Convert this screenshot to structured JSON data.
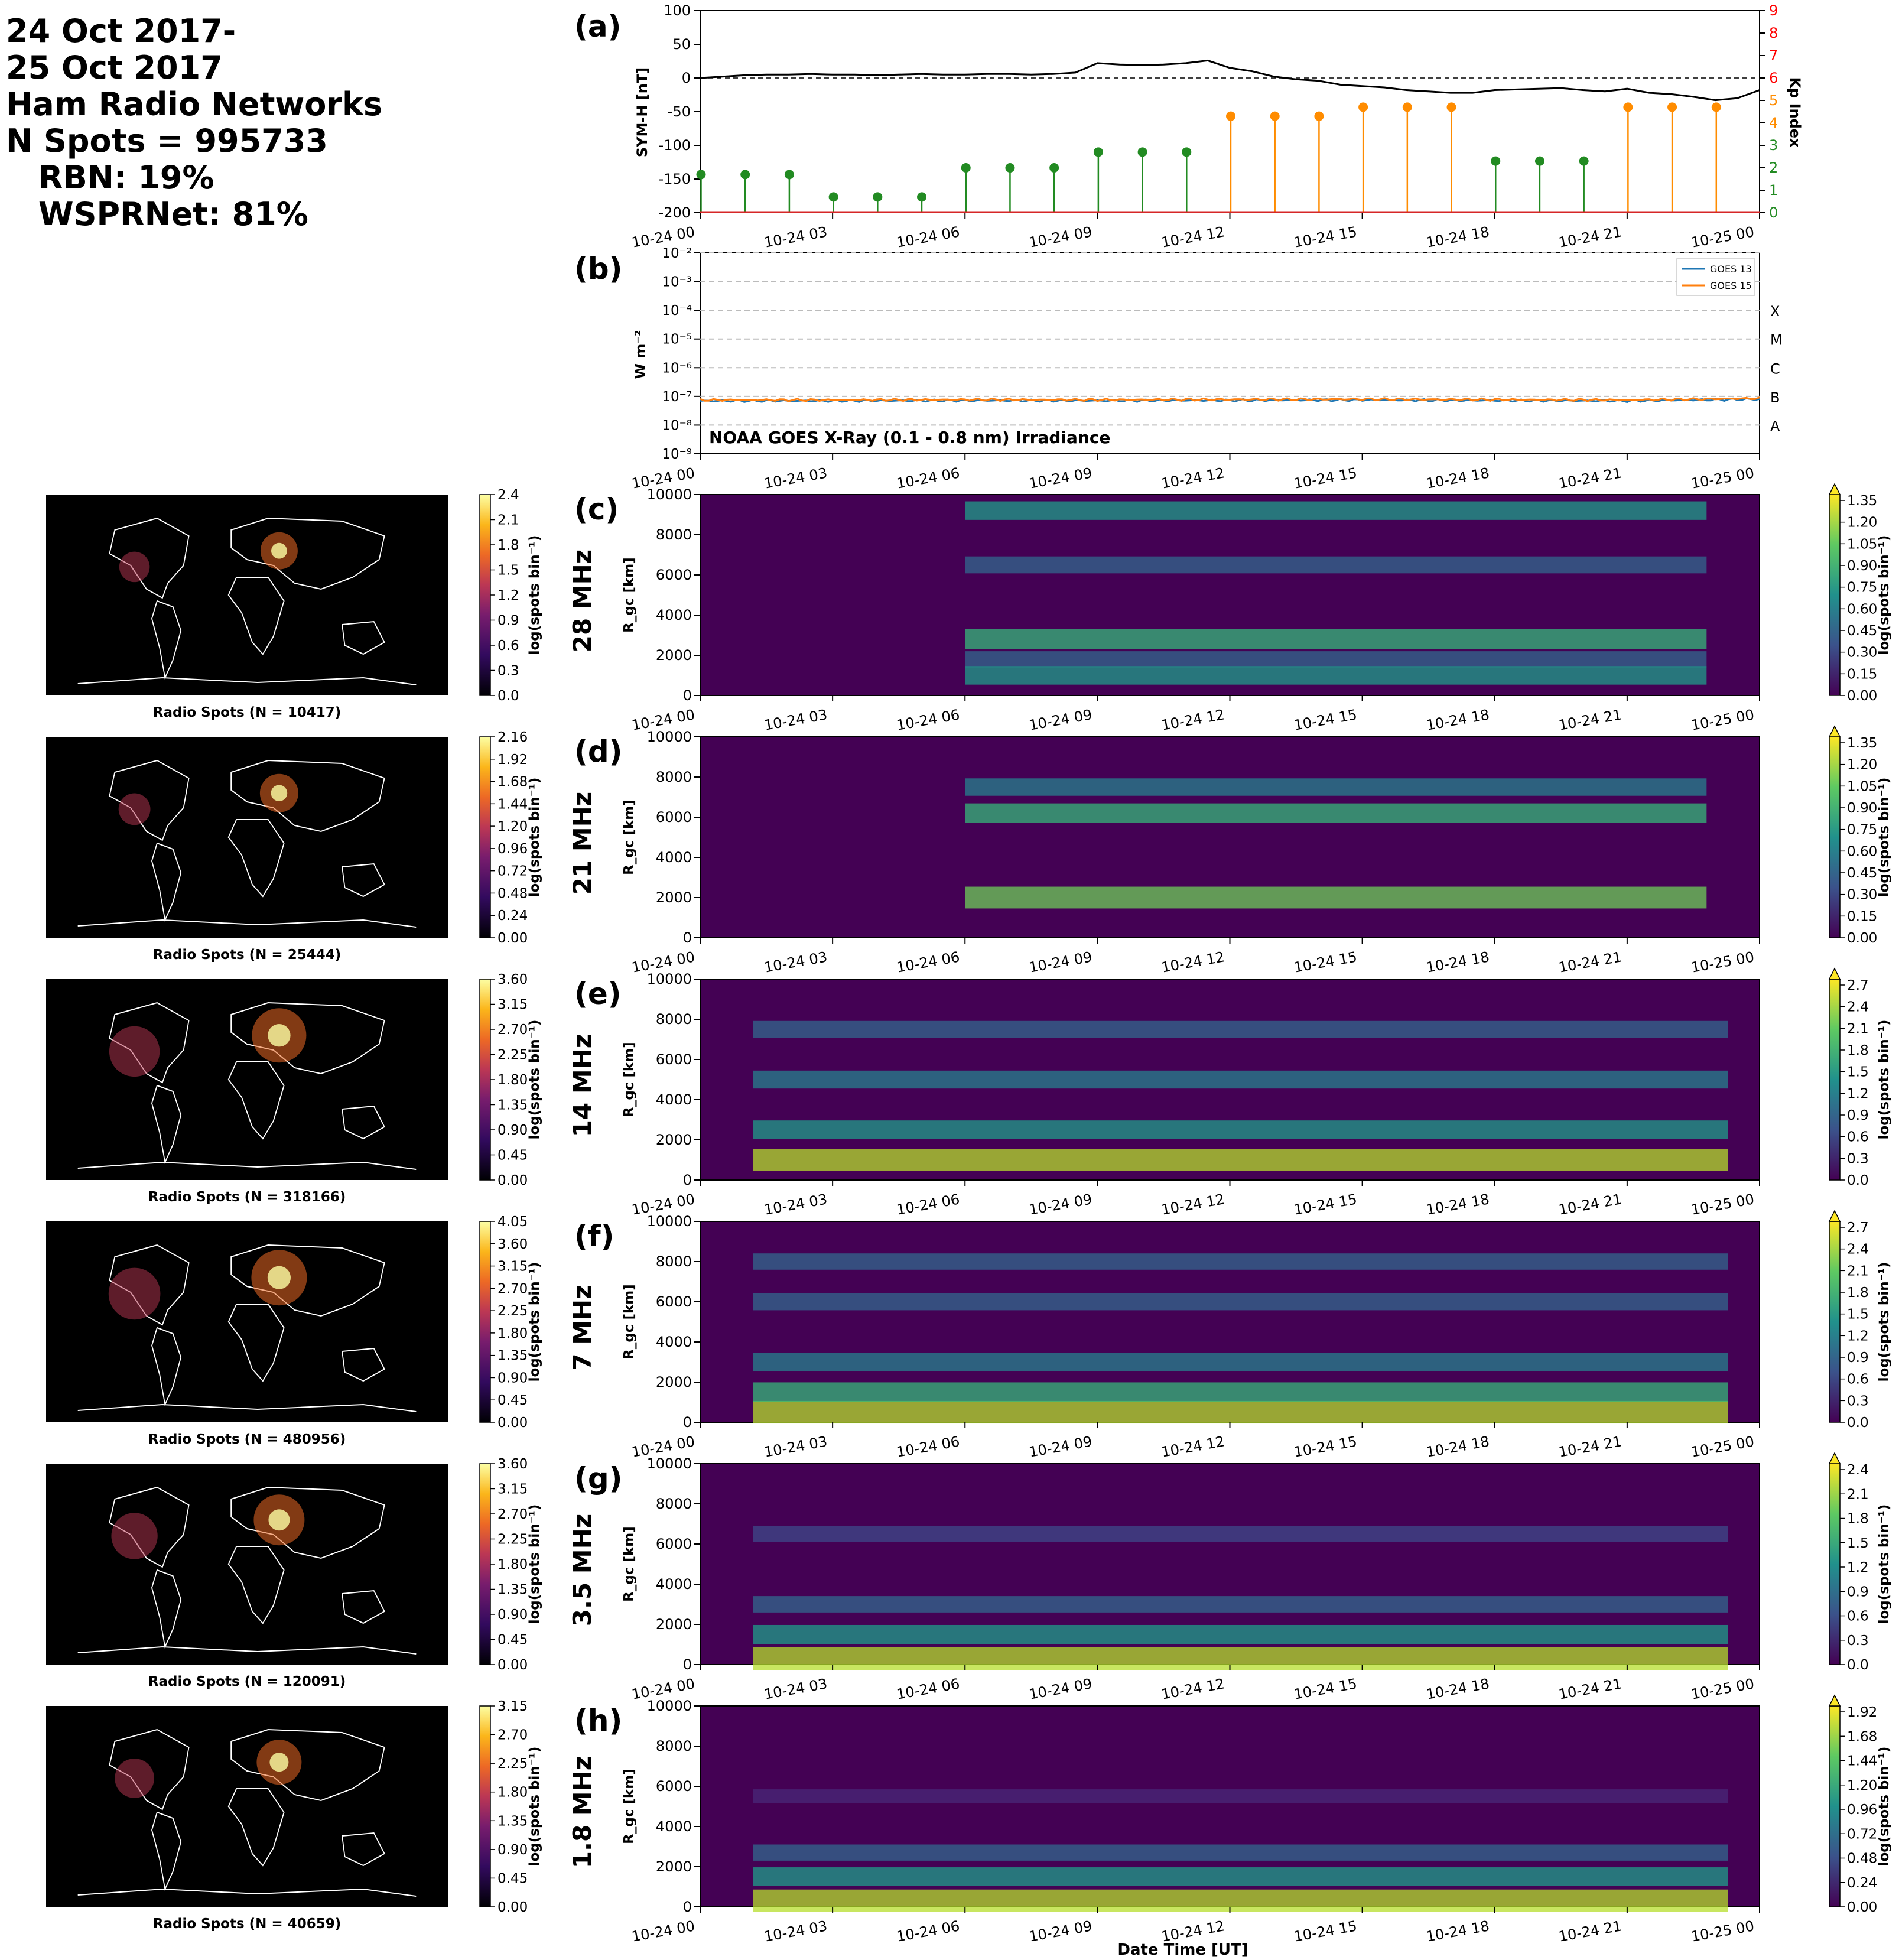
{
  "header": {
    "line1": "24 Oct 2017-",
    "line2": "25 Oct 2017",
    "line3": "Ham Radio Networks",
    "line4": "N Spots = 995733",
    "line5": "RBN: 19%",
    "line6": "WSPRNet: 81%"
  },
  "time_ticks": [
    "10-24 00",
    "10-24 03",
    "10-24 06",
    "10-24 09",
    "10-24 12",
    "10-24 15",
    "10-24 18",
    "10-24 21",
    "10-25 00"
  ],
  "xlabel": "Date Time [UT]",
  "colors": {
    "symh_line": "#000000",
    "kp_low": "#228b22",
    "kp_mid": "#ff8c00",
    "kp_axis": "#ff0000",
    "goes13": "#1f77b4",
    "goes15": "#ff7f0e",
    "map_bg": "#000000",
    "coast": "#ffffff"
  },
  "chart_data": [
    {
      "id": "a",
      "type": "line",
      "panel_label": "(a)",
      "ylabel": "SYM-H [nT]",
      "ylim": [
        -200,
        100
      ],
      "yticks": [
        100,
        50,
        0,
        -50,
        -100,
        -150,
        -200
      ],
      "zero_line": "dashed",
      "series": [
        {
          "x": [
            0,
            0.5,
            1,
            1.5,
            2,
            2.5,
            3,
            3.5,
            4,
            4.5,
            5,
            5.5,
            6,
            6.5,
            7,
            7.5,
            8,
            8.5,
            9,
            9.5,
            10,
            10.5,
            11,
            11.5,
            12,
            12.5,
            13,
            13.5,
            14,
            14.5,
            15,
            15.5,
            16,
            16.5,
            17,
            17.5,
            18,
            18.5,
            19,
            19.5,
            20,
            20.5,
            21,
            21.5,
            22,
            22.5,
            23,
            23.5,
            24
          ],
          "y": [
            0,
            2,
            4,
            5,
            5,
            6,
            5,
            5,
            4,
            5,
            6,
            5,
            5,
            6,
            6,
            5,
            6,
            8,
            22,
            20,
            19,
            20,
            22,
            26,
            15,
            10,
            2,
            -2,
            -4,
            -10,
            -12,
            -14,
            -18,
            -20,
            -22,
            -22,
            -18,
            -17,
            -16,
            -15,
            -18,
            -20,
            -16,
            -22,
            -24,
            -28,
            -33,
            -30,
            -18
          ]
        }
      ],
      "right_axis": {
        "ylabel": "Kp Index",
        "ylim": [
          0,
          9
        ],
        "yticks": [
          0,
          1,
          2,
          3,
          4,
          5,
          6,
          7,
          8,
          9
        ],
        "series": [
          {
            "type": "stem",
            "x": [
              0,
              1,
              2,
              3,
              4,
              5,
              6,
              7,
              8,
              9,
              10,
              11,
              12,
              13,
              14,
              15,
              16,
              17,
              18,
              19,
              20,
              21,
              22,
              23
            ],
            "y": [
              1.7,
              1.7,
              1.7,
              0.7,
              0.7,
              0.7,
              2.0,
              2.0,
              2.0,
              2.7,
              2.7,
              2.7,
              4.3,
              4.3,
              4.3,
              4.7,
              4.7,
              4.7,
              2.3,
              2.3,
              2.3,
              4.7,
              4.7,
              4.7
            ]
          }
        ]
      }
    },
    {
      "id": "b",
      "type": "line",
      "panel_label": "(b)",
      "ylabel": "W m⁻²",
      "yscale": "log",
      "ylim": [
        1e-09,
        0.01
      ],
      "yticks": [
        "10⁻²",
        "10⁻³",
        "10⁻⁴",
        "10⁻⁵",
        "10⁻⁶",
        "10⁻⁷",
        "10⁻⁸",
        "10⁻⁹"
      ],
      "flare_classes": [
        "X",
        "M",
        "C",
        "B",
        "A"
      ],
      "annotation": "NOAA GOES X-Ray (0.1 - 0.8 nm) Irradiance",
      "legend_position": "top-right",
      "series": [
        {
          "name": "GOES 13",
          "x": [
            0,
            3,
            6,
            9,
            12,
            15,
            18,
            21,
            24
          ],
          "y": [
            7e-08,
            7e-08,
            7.2e-08,
            7.1e-08,
            7.3e-08,
            7.5e-08,
            7.2e-08,
            7e-08,
            8e-08
          ]
        },
        {
          "name": "GOES 15",
          "x": [
            0,
            3,
            6,
            9,
            12,
            15,
            18,
            21,
            24
          ],
          "y": [
            7.5e-08,
            7.5e-08,
            7.7e-08,
            7.6e-08,
            7.8e-08,
            8e-08,
            7.7e-08,
            7.5e-08,
            8.5e-08
          ]
        }
      ]
    }
  ],
  "bands": [
    {
      "letter": "(c)",
      "band": "28 MHz",
      "map_caption": "Radio Spots (N = 10417)",
      "map_ticks": [
        "2.4",
        "2.1",
        "1.8",
        "1.5",
        "1.2",
        "0.9",
        "0.6",
        "0.3",
        "0.0"
      ],
      "heat_ticks": [
        "1.35",
        "1.20",
        "1.05",
        "0.90",
        "0.75",
        "0.60",
        "0.45",
        "0.30",
        "0.15",
        "0.00"
      ],
      "heat_max": 1.35
    },
    {
      "letter": "(d)",
      "band": "21 MHz",
      "map_caption": "Radio Spots (N = 25444)",
      "map_ticks": [
        "2.16",
        "1.92",
        "1.68",
        "1.44",
        "1.20",
        "0.96",
        "0.72",
        "0.48",
        "0.24",
        "0.00"
      ],
      "heat_ticks": [
        "1.35",
        "1.20",
        "1.05",
        "0.90",
        "0.75",
        "0.60",
        "0.45",
        "0.30",
        "0.15",
        "0.00"
      ],
      "heat_max": 1.45
    },
    {
      "letter": "(e)",
      "band": "14 MHz",
      "map_caption": "Radio Spots (N = 318166)",
      "map_ticks": [
        "3.60",
        "3.15",
        "2.70",
        "2.25",
        "1.80",
        "1.35",
        "0.90",
        "0.45",
        "0.00"
      ],
      "heat_ticks": [
        "2.7",
        "2.4",
        "2.1",
        "1.8",
        "1.5",
        "1.2",
        "0.9",
        "0.6",
        "0.3",
        "0.0"
      ],
      "heat_max": 2.8
    },
    {
      "letter": "(f)",
      "band": "7 MHz",
      "map_caption": "Radio Spots (N = 480956)",
      "map_ticks": [
        "4.05",
        "3.60",
        "3.15",
        "2.70",
        "2.25",
        "1.80",
        "1.35",
        "0.90",
        "0.45",
        "0.00"
      ],
      "heat_ticks": [
        "2.7",
        "2.4",
        "2.1",
        "1.8",
        "1.5",
        "1.2",
        "0.9",
        "0.6",
        "0.3",
        "0.0"
      ],
      "heat_max": 2.9
    },
    {
      "letter": "(g)",
      "band": "3.5 MHz",
      "map_caption": "Radio Spots (N = 120091)",
      "map_ticks": [
        "3.60",
        "3.15",
        "2.70",
        "2.25",
        "1.80",
        "1.35",
        "0.90",
        "0.45",
        "0.00"
      ],
      "heat_ticks": [
        "2.4",
        "2.1",
        "1.8",
        "1.5",
        "1.2",
        "0.9",
        "0.6",
        "0.3",
        "0.0"
      ],
      "heat_max": 2.5
    },
    {
      "letter": "(h)",
      "band": "1.8 MHz",
      "map_caption": "Radio Spots (N = 40659)",
      "map_ticks": [
        "3.15",
        "2.70",
        "2.25",
        "1.80",
        "1.35",
        "0.90",
        "0.45",
        "0.00"
      ],
      "heat_ticks": [
        "1.92",
        "1.68",
        "1.44",
        "1.20",
        "0.96",
        "0.72",
        "0.48",
        "0.24",
        "0.00"
      ],
      "heat_max": 2.0
    }
  ],
  "heat_ylabel": "R_gc [km]",
  "heat_yticks": [
    10000,
    8000,
    6000,
    4000,
    2000,
    0
  ],
  "cbar_label": "log(spots bin⁻¹)",
  "heat_profiles": {
    "28 MHz": [
      [
        1800,
        0.4
      ],
      [
        1000,
        0.7
      ],
      [
        2800,
        0.9
      ],
      [
        6500,
        0.5
      ],
      [
        9200,
        0.7
      ]
    ],
    "21 MHz": [
      [
        2000,
        1.2
      ],
      [
        6200,
        0.9
      ],
      [
        7500,
        0.6
      ]
    ],
    "14 MHz": [
      [
        1000,
        2.4
      ],
      [
        2500,
        1.5
      ],
      [
        5000,
        1.3
      ],
      [
        7500,
        1.0
      ]
    ],
    "7 MHz": [
      [
        500,
        2.6
      ],
      [
        1500,
        1.8
      ],
      [
        3000,
        1.3
      ],
      [
        6000,
        1.1
      ],
      [
        8000,
        0.9
      ]
    ],
    "3.5 MHz": [
      [
        300,
        2.3
      ],
      [
        1500,
        1.4
      ],
      [
        3000,
        0.8
      ],
      [
        6500,
        0.6
      ]
    ],
    "1.8 MHz": [
      [
        300,
        1.8
      ],
      [
        1500,
        1.1
      ],
      [
        2700,
        0.6
      ],
      [
        5500,
        0.2
      ]
    ]
  }
}
